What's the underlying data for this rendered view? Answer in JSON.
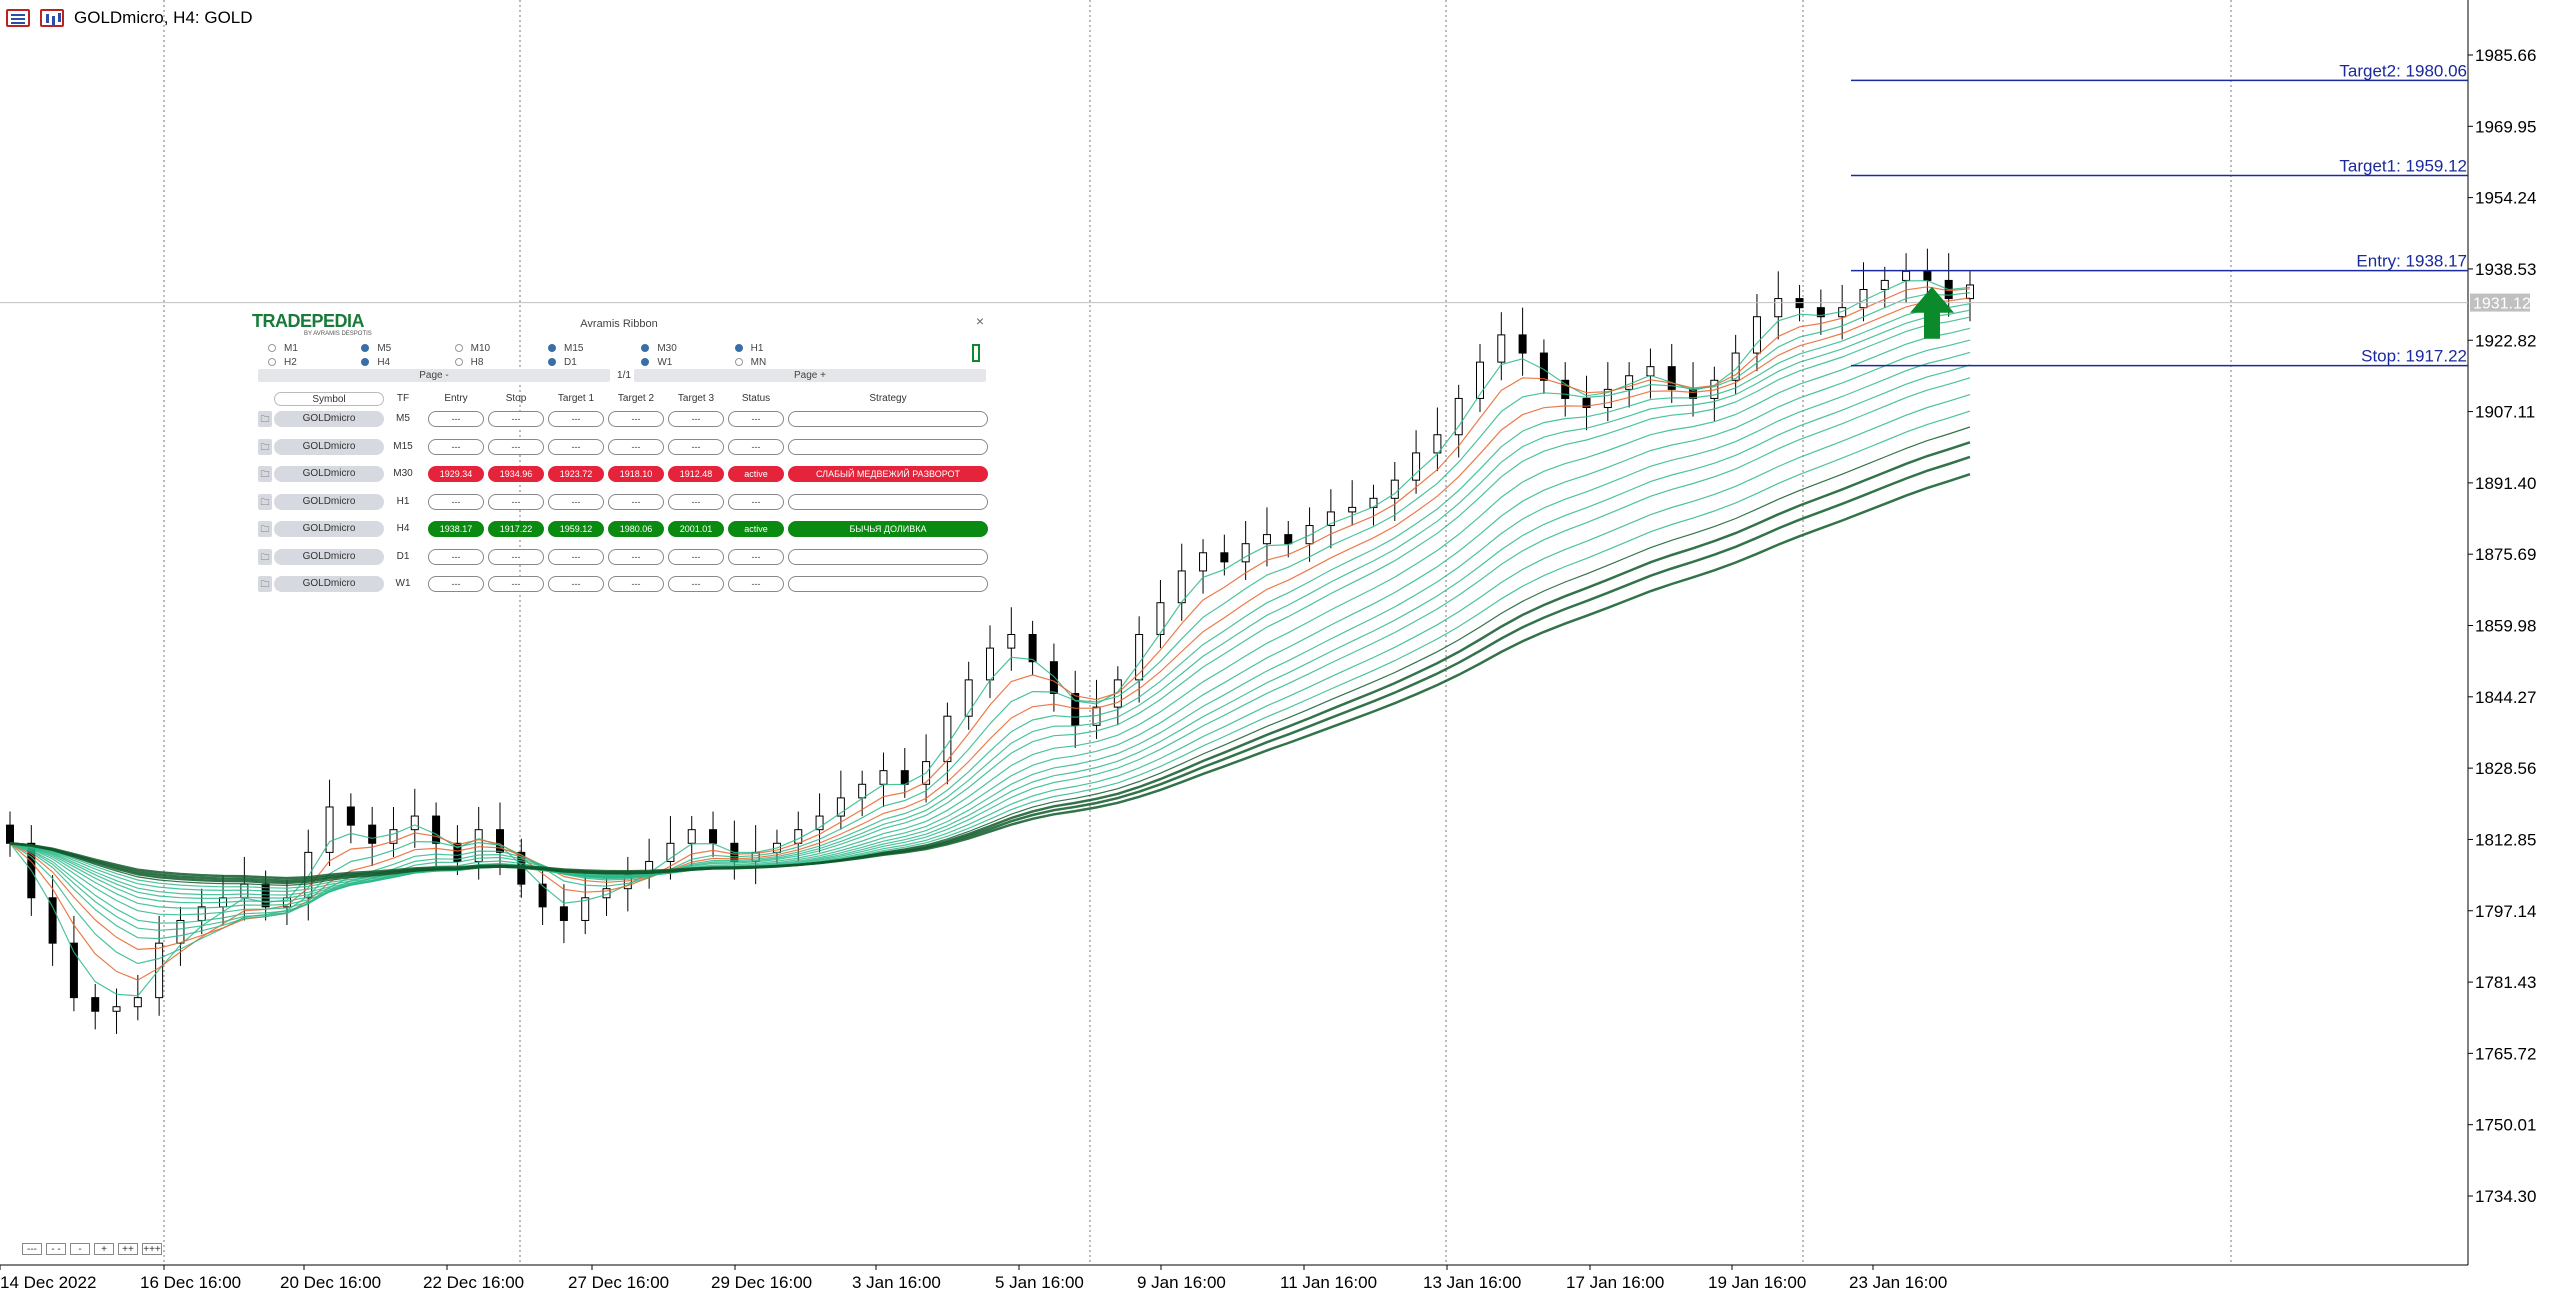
{
  "window": {
    "title": "GOLDmicro, H4:  GOLD"
  },
  "icons": [
    "window-list-icon",
    "chart-type-icon"
  ],
  "colors": {
    "bull": "#2bb98a",
    "bear": "#e8642c",
    "level_line": "#1a2a9c",
    "ribbon_dark": "#0f5a2a",
    "arrow": "#0a8a2a"
  },
  "chart_data": {
    "type": "candlestick",
    "title": "GOLDmicro, H4:  GOLD",
    "ylim": [
      1725,
      1995
    ],
    "x_tick_labels": [
      "14 Dec 2022",
      "16 Dec 16:00",
      "20 Dec 16:00",
      "22 Dec 16:00",
      "27 Dec 16:00",
      "29 Dec 16:00",
      "3 Jan 16:00",
      "5 Jan 16:00",
      "9 Jan 16:00",
      "11 Jan 16:00",
      "13 Jan 16:00",
      "17 Jan 16:00",
      "19 Jan 16:00",
      "23 Jan 16:00"
    ],
    "y_tick_labels": [
      1985.66,
      1969.95,
      1954.24,
      1938.53,
      1922.82,
      1907.11,
      1891.4,
      1875.69,
      1859.98,
      1844.27,
      1828.56,
      1812.85,
      1797.14,
      1781.43,
      1765.72,
      1750.01,
      1734.3
    ],
    "current_price": "1931.12",
    "close_approx": [
      1812,
      1800,
      1790,
      1778,
      1775,
      1776,
      1778,
      1790,
      1795,
      1798,
      1800,
      1803,
      1798,
      1800,
      1810,
      1820,
      1816,
      1812,
      1815,
      1818,
      1812,
      1808,
      1815,
      1810,
      1803,
      1798,
      1795,
      1800,
      1802,
      1805,
      1808,
      1812,
      1815,
      1812,
      1808,
      1810,
      1812,
      1815,
      1818,
      1822,
      1825,
      1828,
      1825,
      1830,
      1840,
      1848,
      1855,
      1858,
      1852,
      1845,
      1838,
      1842,
      1848,
      1858,
      1865,
      1872,
      1876,
      1874,
      1878,
      1880,
      1878,
      1882,
      1885,
      1886,
      1888,
      1892,
      1898,
      1902,
      1910,
      1918,
      1924,
      1920,
      1914,
      1910,
      1908,
      1912,
      1915,
      1917,
      1912,
      1910,
      1914,
      1920,
      1928,
      1932,
      1930,
      1928,
      1930,
      1934,
      1936,
      1938,
      1936,
      1932,
      1935
    ],
    "levels": [
      {
        "name": "Target2",
        "label": "Target2: 1980.06",
        "value": 1980.06
      },
      {
        "name": "Target1",
        "label": "Target1: 1959.12",
        "value": 1959.12
      },
      {
        "name": "Entry",
        "label": "Entry: 1938.17",
        "value": 1938.17
      },
      {
        "name": "Stop",
        "label": "Stop: 1917.22",
        "value": 1917.22
      }
    ]
  },
  "panel": {
    "logo": "TRADEPEDIA",
    "logo_sub": "BY AVRAMIS DESPOTIS",
    "title": "Avramis Ribbon",
    "close": "×",
    "timeframes_row1": [
      {
        "label": "M1",
        "on": false
      },
      {
        "label": "M5",
        "on": true
      },
      {
        "label": "M10",
        "on": false
      },
      {
        "label": "M15",
        "on": true
      },
      {
        "label": "M30",
        "on": true
      },
      {
        "label": "H1",
        "on": true
      }
    ],
    "timeframes_row2": [
      {
        "label": "H2",
        "on": false
      },
      {
        "label": "H4",
        "on": true
      },
      {
        "label": "H8",
        "on": false
      },
      {
        "label": "D1",
        "on": true
      },
      {
        "label": "W1",
        "on": true
      },
      {
        "label": "MN",
        "on": false
      }
    ],
    "page_prev": "Page -",
    "page_num": "1/1",
    "page_next": "Page +",
    "headers": {
      "symbol": "Symbol",
      "tf": "TF",
      "entry": "Entry",
      "stop": "Stop",
      "t1": "Target 1",
      "t2": "Target 2",
      "t3": "Target 3",
      "status": "Status",
      "strategy": "Strategy"
    },
    "rows": [
      {
        "symbol": "GOLDmicro",
        "tf": "M5",
        "entry": "---",
        "stop": "---",
        "t1": "---",
        "t2": "---",
        "t3": "---",
        "status": "---",
        "strategy": "",
        "tone": ""
      },
      {
        "symbol": "GOLDmicro",
        "tf": "M15",
        "entry": "---",
        "stop": "---",
        "t1": "---",
        "t2": "---",
        "t3": "---",
        "status": "---",
        "strategy": "",
        "tone": ""
      },
      {
        "symbol": "GOLDmicro",
        "tf": "M30",
        "entry": "1929.34",
        "stop": "1934.96",
        "t1": "1923.72",
        "t2": "1918.10",
        "t3": "1912.48",
        "status": "active",
        "strategy": "СЛАБЫЙ МЕДВЕЖИЙ РАЗВОРОТ",
        "tone": "red"
      },
      {
        "symbol": "GOLDmicro",
        "tf": "H1",
        "entry": "---",
        "stop": "---",
        "t1": "---",
        "t2": "---",
        "t3": "---",
        "status": "---",
        "strategy": "",
        "tone": ""
      },
      {
        "symbol": "GOLDmicro",
        "tf": "H4",
        "entry": "1938.17",
        "stop": "1917.22",
        "t1": "1959.12",
        "t2": "1980.06",
        "t3": "2001.01",
        "status": "active",
        "strategy": "БЫЧЬЯ ДОЛИВКА",
        "tone": "green"
      },
      {
        "symbol": "GOLDmicro",
        "tf": "D1",
        "entry": "---",
        "stop": "---",
        "t1": "---",
        "t2": "---",
        "t3": "---",
        "status": "---",
        "strategy": "",
        "tone": ""
      },
      {
        "symbol": "GOLDmicro",
        "tf": "W1",
        "entry": "---",
        "stop": "---",
        "t1": "---",
        "t2": "---",
        "t3": "---",
        "status": "---",
        "strategy": "",
        "tone": ""
      }
    ]
  },
  "zoom_buttons": [
    "---",
    "- -",
    "-",
    "+",
    "++",
    "+++"
  ]
}
